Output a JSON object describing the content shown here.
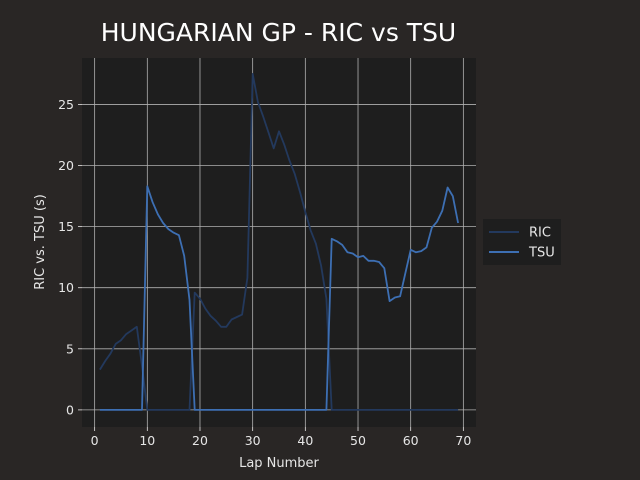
{
  "chart_data": {
    "type": "line",
    "title": "HUNGARIAN GP - RIC vs TSU",
    "xlabel": "Lap Number",
    "ylabel": "RIC vs. TSU (s)",
    "xlim": [
      -2.4,
      72.4
    ],
    "ylim": [
      -1.4,
      28.8
    ],
    "xticks": [
      0,
      10,
      20,
      30,
      40,
      50,
      60,
      70
    ],
    "yticks": [
      0,
      5,
      10,
      15,
      20,
      25
    ],
    "grid": true,
    "legend_position": "right",
    "series": [
      {
        "name": "RIC",
        "color": "#23395d",
        "points": [
          [
            1,
            3.3
          ],
          [
            2,
            4.0
          ],
          [
            3,
            4.6
          ],
          [
            4,
            5.4
          ],
          [
            5,
            5.7
          ],
          [
            6,
            6.2
          ],
          [
            7,
            6.5
          ],
          [
            8,
            6.8
          ],
          [
            9,
            3.6
          ],
          [
            10,
            0
          ],
          [
            18,
            0
          ],
          [
            19,
            9.6
          ],
          [
            20,
            9.1
          ],
          [
            21,
            8.3
          ],
          [
            22,
            7.7
          ],
          [
            23,
            7.3
          ],
          [
            24,
            6.8
          ],
          [
            25,
            6.8
          ],
          [
            26,
            7.4
          ],
          [
            27,
            7.6
          ],
          [
            28,
            7.8
          ],
          [
            29,
            10.8
          ],
          [
            30,
            27.5
          ],
          [
            31,
            25.2
          ],
          [
            32,
            24.0
          ],
          [
            33,
            22.7
          ],
          [
            34,
            21.4
          ],
          [
            35,
            22.8
          ],
          [
            36,
            21.7
          ],
          [
            37,
            20.4
          ],
          [
            38,
            19.3
          ],
          [
            39,
            17.8
          ],
          [
            40,
            16.2
          ],
          [
            41,
            14.7
          ],
          [
            42,
            13.6
          ],
          [
            43,
            11.8
          ],
          [
            44,
            9.1
          ],
          [
            45,
            0
          ],
          [
            69,
            0
          ]
        ]
      },
      {
        "name": "TSU",
        "color": "#3d6fb3",
        "points": [
          [
            1,
            0
          ],
          [
            9,
            0
          ],
          [
            10,
            18.3
          ],
          [
            11,
            17.0
          ],
          [
            12,
            16.0
          ],
          [
            13,
            15.3
          ],
          [
            14,
            14.8
          ],
          [
            15,
            14.5
          ],
          [
            16,
            14.3
          ],
          [
            17,
            12.6
          ],
          [
            18,
            9.0
          ],
          [
            19,
            0
          ],
          [
            44,
            0
          ],
          [
            45,
            14.0
          ],
          [
            46,
            13.8
          ],
          [
            47,
            13.5
          ],
          [
            48,
            12.9
          ],
          [
            49,
            12.8
          ],
          [
            50,
            12.5
          ],
          [
            51,
            12.6
          ],
          [
            52,
            12.2
          ],
          [
            53,
            12.2
          ],
          [
            54,
            12.1
          ],
          [
            55,
            11.6
          ],
          [
            56,
            8.9
          ],
          [
            57,
            9.2
          ],
          [
            58,
            9.3
          ],
          [
            59,
            11.2
          ],
          [
            60,
            13.1
          ],
          [
            61,
            12.9
          ],
          [
            62,
            13.0
          ],
          [
            63,
            13.3
          ],
          [
            64,
            14.9
          ],
          [
            65,
            15.4
          ],
          [
            66,
            16.3
          ],
          [
            67,
            18.2
          ],
          [
            68,
            17.5
          ],
          [
            69,
            15.3
          ]
        ]
      }
    ]
  }
}
